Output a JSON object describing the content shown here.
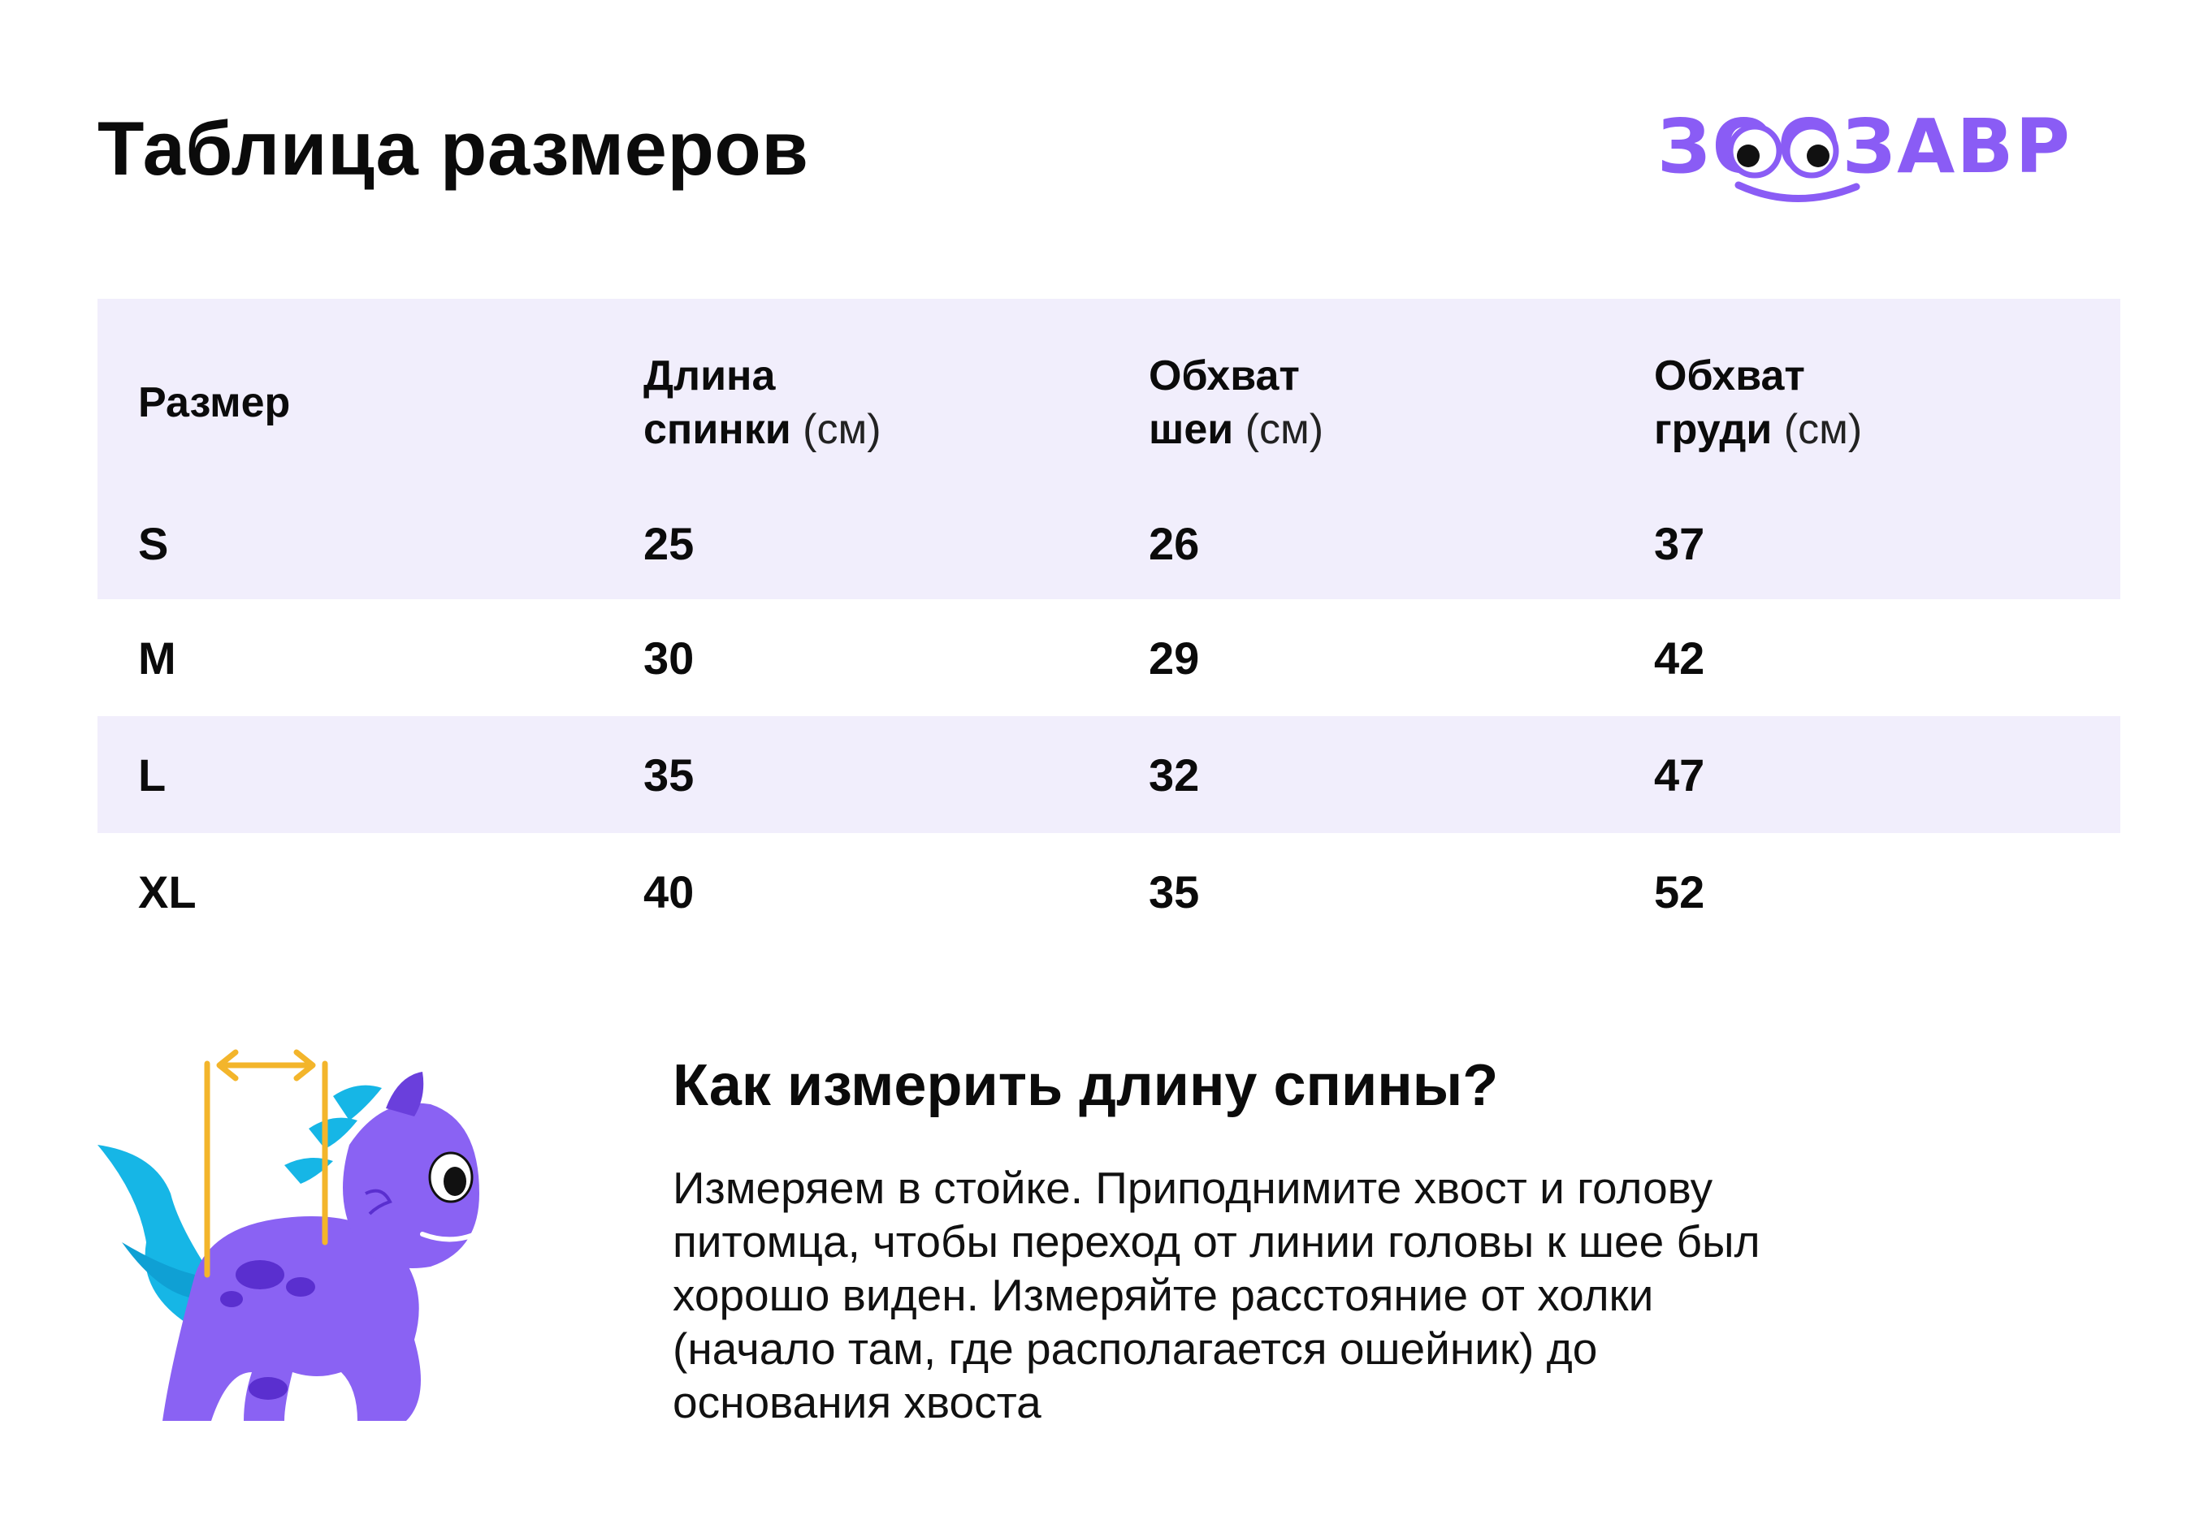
{
  "page": {
    "title": "Таблица размеров"
  },
  "logo": {
    "text": "ЗООЗАВР",
    "icon": "zoozavr-logo-icon",
    "color": "#8a5cf5"
  },
  "colors": {
    "accent": "#8a5cf5",
    "table_shade": "#f1eefc",
    "measure_line": "#f3b52b",
    "dino_body": "#8a62f3",
    "dino_spikes": "#16b6e6"
  },
  "table": {
    "headers": [
      {
        "label": "Размер",
        "unit": ""
      },
      {
        "label_line1": "Длина",
        "label_line2": "спинки",
        "unit": "(см)"
      },
      {
        "label_line1": "Обхват",
        "label_line2": "шеи",
        "unit": "(см)"
      },
      {
        "label_line1": "Обхват",
        "label_line2": "груди",
        "unit": "(см)"
      }
    ],
    "rows": [
      {
        "size": "S",
        "back": "25",
        "neck": "26",
        "chest": "37"
      },
      {
        "size": "M",
        "back": "30",
        "neck": "29",
        "chest": "42"
      },
      {
        "size": "L",
        "back": "35",
        "neck": "32",
        "chest": "47"
      },
      {
        "size": "XL",
        "back": "40",
        "neck": "35",
        "chest": "52"
      }
    ]
  },
  "illustration": {
    "icon": "dinosaur-measure-icon"
  },
  "how_to": {
    "title": "Как измерить длину спины?",
    "lines": [
      "Измеряем в стойке. Приподнимите хвост и голову",
      "питомца, чтобы переход от линии головы к шее был",
      "хорошо виден. Измеряйте расстояние от холки",
      "(начало там, где располагается ошейник) до",
      "основания хвоста"
    ]
  }
}
